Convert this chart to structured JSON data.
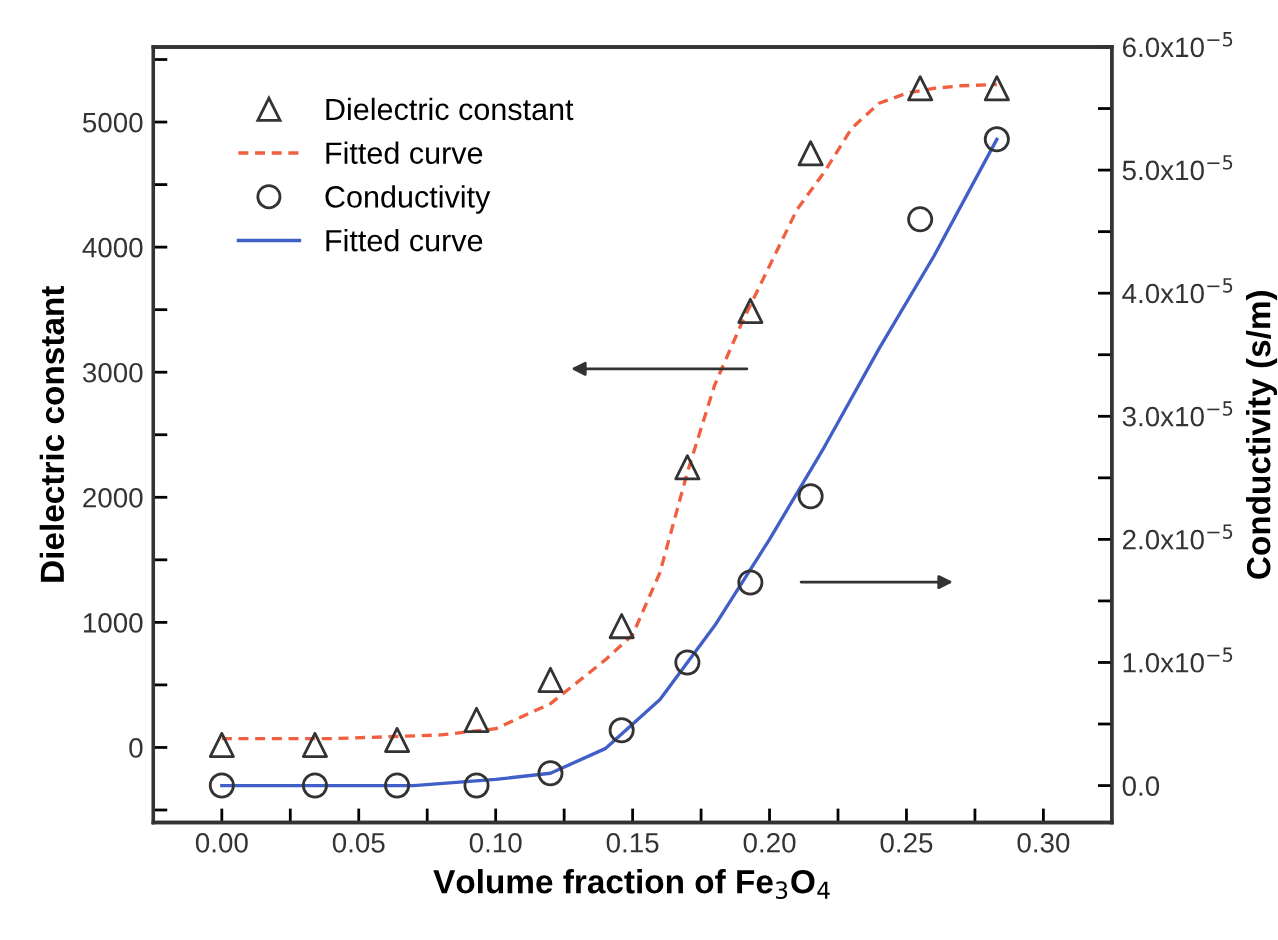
{
  "chart_data": {
    "type": "scatter",
    "xlabel": "Volume fraction of Fe$_{3}$O$_{4}$",
    "ylabel": "Dielectric constant",
    "y2label": "Conductivity (s/m)",
    "xlim": [
      -0.025,
      0.325
    ],
    "xticks": [
      {
        "value": 0.025,
        "label": null
      },
      {
        "value": 0.0,
        "label": "0.00"
      },
      0.05,
      {
        "value": 0.075,
        "label": null
      },
      {
        "value": 0.1,
        "label": "0.10"
      },
      {
        "value": 0.125,
        "label": null
      },
      0.15,
      {
        "value": 0.175,
        "label": null
      },
      {
        "value": 0.2,
        "label": "0.20"
      },
      {
        "value": 0.225,
        "label": null
      },
      0.25,
      {
        "value": 0.275,
        "label": null
      },
      {
        "value": 0.3,
        "label": "0.30"
      }
    ],
    "ylim": [
      -600,
      5600
    ],
    "yticks": [
      {
        "value": -500,
        "label": null
      },
      0,
      {
        "value": 500,
        "label": null
      },
      1000,
      {
        "value": 1500,
        "label": null
      },
      2000,
      {
        "value": 2500,
        "label": null
      },
      3000,
      {
        "value": 3500,
        "label": null
      },
      4000,
      {
        "value": 4500,
        "label": null
      },
      5000,
      {
        "value": 5500,
        "label": null
      }
    ],
    "y2lim": [
      -3e-06,
      6e-05
    ],
    "y2ticks": [
      {
        "value": 0,
        "label": "0.0"
      },
      {
        "value": 5e-06,
        "label": null
      },
      {
        "value": 1e-05,
        "label": "1.0x10$^{−5}$"
      },
      {
        "value": 1.5e-05,
        "label": null
      },
      {
        "value": 2e-05,
        "label": "2.0x10$^{−5}$"
      },
      {
        "value": 2.5e-05,
        "label": null
      },
      {
        "value": 3e-05,
        "label": "3.0x10$^{−5}$"
      },
      {
        "value": 3.5e-05,
        "label": null
      },
      {
        "value": 4e-05,
        "label": "4.0x10$^{−5}$"
      },
      {
        "value": 4.5e-05,
        "label": null
      },
      {
        "value": 5e-05,
        "label": "5.0x10$^{−5}$"
      },
      {
        "value": 5.5e-05,
        "label": null
      },
      {
        "value": 6e-05,
        "label": "6.0x10$^{−5}$"
      }
    ],
    "grid": false,
    "legend": "top left",
    "series": [
      {
        "name": "Dielectric constant",
        "marker": "triangle",
        "color": "#333333",
        "x": [
          0.0,
          0.034,
          0.064,
          0.093,
          0.12,
          0.146,
          0.17,
          0.193,
          0.215,
          0.255,
          0.283
        ],
        "values": [
          20,
          20,
          60,
          220,
          540,
          970,
          2240,
          3490,
          4750,
          5270,
          5270
        ]
      },
      {
        "name": "Fitted curve",
        "type": "line",
        "line_style": "dashed",
        "color": "#f06040",
        "x": [
          0.0,
          0.04,
          0.08,
          0.1,
          0.12,
          0.14,
          0.15,
          0.16,
          0.17,
          0.18,
          0.19,
          0.2,
          0.21,
          0.22,
          0.23,
          0.24,
          0.25,
          0.26,
          0.27,
          0.283
        ],
        "values": [
          70,
          70,
          100,
          150,
          350,
          700,
          900,
          1400,
          2200,
          2900,
          3400,
          3850,
          4300,
          4600,
          4950,
          5150,
          5230,
          5270,
          5290,
          5300
        ]
      },
      {
        "name": "Conductivity",
        "marker": "circle",
        "axis": "y2",
        "color": "#333333",
        "x": [
          0.0,
          0.034,
          0.064,
          0.093,
          0.12,
          0.146,
          0.17,
          0.193,
          0.215,
          0.255,
          0.283
        ],
        "values": [
          0.0,
          0.0,
          0.0,
          0.0,
          1e-06,
          4.5e-06,
          1e-05,
          1.65e-05,
          2.35e-05,
          4.6e-05,
          5.25e-05
        ]
      },
      {
        "name": "Fitted curve",
        "type": "line",
        "line_style": "solid",
        "axis": "y2",
        "color": "#4060c8",
        "x": [
          0.0,
          0.04,
          0.07,
          0.1,
          0.12,
          0.14,
          0.16,
          0.18,
          0.2,
          0.22,
          0.24,
          0.26,
          0.283
        ],
        "values": [
          0.0,
          0.0,
          0.0,
          5e-07,
          1e-06,
          3e-06,
          7e-06,
          1.3e-05,
          2e-05,
          2.75e-05,
          3.55e-05,
          4.3e-05,
          5.25e-05
        ]
      }
    ]
  }
}
